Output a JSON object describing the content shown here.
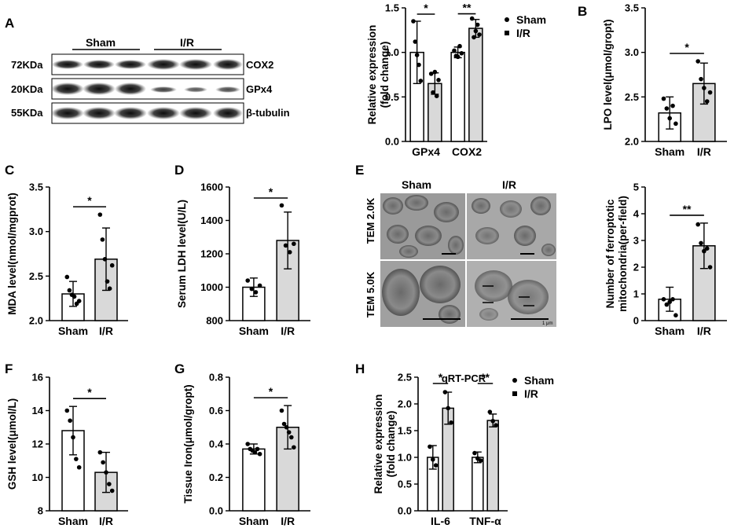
{
  "panel_letters": {
    "A": "A",
    "B": "B",
    "C": "C",
    "D": "D",
    "E": "E",
    "F": "F",
    "G": "G",
    "H": "H"
  },
  "western_blot": {
    "groups": [
      "Sham",
      "I/R"
    ],
    "rows": [
      {
        "kda": "72KDa",
        "protein": "COX2"
      },
      {
        "kda": "20KDa",
        "protein": "GPx4"
      },
      {
        "kda": "55KDa",
        "protein": "β-tubulin"
      }
    ]
  },
  "tem": {
    "col_labels": [
      "Sham",
      "I/R"
    ],
    "row_labels": [
      "TEM 2.0K",
      "TEM 5.0K"
    ],
    "scale_text": "1 μm"
  },
  "colors": {
    "sham": "#ffffff",
    "ir": "#d9d9d9",
    "stroke": "#000000"
  },
  "chart_data": [
    {
      "id": "A-bar",
      "type": "bar",
      "ylabel": "Relative expression\n(fold change)",
      "categories": [
        "GPx4",
        "COX2"
      ],
      "ylim": [
        0,
        1.5
      ],
      "yticks": [
        0,
        0.5,
        1.0,
        1.5
      ],
      "yticklabels": [
        "0.0",
        "0.5",
        "1.0",
        "1.5"
      ],
      "legend": [
        "Sham",
        "I/R"
      ],
      "legend_position": "top-right",
      "series": [
        {
          "name": "Sham",
          "values": [
            1.0,
            1.0
          ],
          "errors": [
            0.35,
            0.06
          ],
          "points": [
            [
              1.35,
              1.12,
              0.97,
              0.86,
              0.68
            ],
            [
              1.02,
              0.96,
              0.95,
              1.07,
              0.99
            ]
          ]
        },
        {
          "name": "I/R",
          "values": [
            0.65,
            1.27
          ],
          "errors": [
            0.12,
            0.1
          ],
          "points": [
            [
              0.76,
              0.55,
              0.78,
              0.51,
              0.69
            ],
            [
              1.38,
              1.17,
              1.24,
              1.31,
              1.2
            ]
          ]
        }
      ],
      "significance": [
        "*",
        "**"
      ]
    },
    {
      "id": "B",
      "type": "bar",
      "ylabel": "LPO level(μmol/gropt)",
      "categories": [
        "Sham",
        "I/R"
      ],
      "values": [
        2.32,
        2.65
      ],
      "errors": [
        0.18,
        0.23
      ],
      "points": [
        [
          2.48,
          2.37,
          2.26,
          2.4,
          2.2
        ],
        [
          2.9,
          2.7,
          2.6,
          2.45,
          2.55
        ]
      ],
      "ylim": [
        2.0,
        3.5
      ],
      "yticks": [
        2.0,
        2.5,
        3.0,
        3.5
      ],
      "yticklabels": [
        "2.0",
        "2.5",
        "3.0",
        "3.5"
      ],
      "significance": "*"
    },
    {
      "id": "C",
      "type": "bar",
      "ylabel": "MDA level(nmol/mgprot)",
      "categories": [
        "Sham",
        "I/R"
      ],
      "values": [
        2.3,
        2.69
      ],
      "errors": [
        0.14,
        0.35
      ],
      "points": [
        [
          2.49,
          2.34,
          2.29,
          2.27,
          2.19,
          2.22
        ],
        [
          3.19,
          2.91,
          2.69,
          2.44,
          2.36,
          2.62
        ]
      ],
      "ylim": [
        2.0,
        3.5
      ],
      "yticks": [
        2.0,
        2.5,
        3.0,
        3.5
      ],
      "yticklabels": [
        "2.0",
        "2.5",
        "3.0",
        "3.5"
      ],
      "significance": "*"
    },
    {
      "id": "D",
      "type": "bar",
      "ylabel": "Serum LDH level(U/L)",
      "categories": [
        "Sham",
        "I/R"
      ],
      "values": [
        1000,
        1280
      ],
      "errors": [
        55,
        170
      ],
      "points": [
        [
          1040,
          990,
          970,
          1010
        ],
        [
          1490,
          1250,
          1210,
          1260
        ]
      ],
      "ylim": [
        800,
        1600
      ],
      "yticks": [
        800,
        1000,
        1200,
        1400,
        1600
      ],
      "yticklabels": [
        "800",
        "1000",
        "1200",
        "1400",
        "1600"
      ],
      "significance": "*"
    },
    {
      "id": "E-bar",
      "type": "bar",
      "ylabel": "Number of ferroptotic\nmitochondria(per-field)",
      "categories": [
        "Sham",
        "I/R"
      ],
      "values": [
        0.8,
        2.8
      ],
      "errors": [
        0.45,
        0.85
      ],
      "points": [
        [
          0.8,
          0.6,
          0.7,
          0.8,
          0.2
        ],
        [
          3.6,
          2.9,
          2.6,
          2.7,
          2.0
        ]
      ],
      "ylim": [
        0,
        5
      ],
      "yticks": [
        0,
        1,
        2,
        3,
        4,
        5
      ],
      "yticklabels": [
        "0",
        "1",
        "2",
        "3",
        "4",
        "5"
      ],
      "significance": "**"
    },
    {
      "id": "F",
      "type": "bar",
      "ylabel": "GSH level(μmol/L)",
      "categories": [
        "Sham",
        "I/R"
      ],
      "values": [
        12.8,
        10.3
      ],
      "errors": [
        1.45,
        1.2
      ],
      "points": [
        [
          14.0,
          13.4,
          12.4,
          11.1,
          10.6
        ],
        [
          11.5,
          10.9,
          10.3,
          9.6,
          9.2
        ]
      ],
      "ylim": [
        8,
        16
      ],
      "yticks": [
        8,
        10,
        12,
        14,
        16
      ],
      "yticklabels": [
        "8",
        "10",
        "12",
        "14",
        "16"
      ],
      "significance": "*"
    },
    {
      "id": "G",
      "type": "bar",
      "ylabel": "Tissue Iron(μmol/gropt)",
      "categories": [
        "Sham",
        "I/R"
      ],
      "values": [
        0.37,
        0.5
      ],
      "errors": [
        0.03,
        0.13
      ],
      "points": [
        [
          0.4,
          0.37,
          0.36,
          0.35,
          0.37,
          0.34
        ],
        [
          0.6,
          0.52,
          0.5,
          0.47,
          0.44,
          0.38
        ]
      ],
      "ylim": [
        0,
        0.8
      ],
      "yticks": [
        0,
        0.2,
        0.4,
        0.6,
        0.8
      ],
      "yticklabels": [
        "0.0",
        "0.2",
        "0.4",
        "0.6",
        "0.8"
      ],
      "significance": "*"
    },
    {
      "id": "H",
      "type": "bar",
      "title": "qRT-PCR",
      "ylabel": "Relative expression\n(fold change)",
      "categories": [
        "IL-6",
        "TNF-α"
      ],
      "ylim": [
        0,
        2.5
      ],
      "yticks": [
        0,
        0.5,
        1.0,
        1.5,
        2.0,
        2.5
      ],
      "yticklabels": [
        "0.0",
        "0.5",
        "1.0",
        "1.5",
        "2.0",
        "2.5"
      ],
      "legend": [
        "Sham",
        "I/R"
      ],
      "legend_position": "top-right",
      "series": [
        {
          "name": "Sham",
          "values": [
            1.0,
            1.0
          ],
          "errors": [
            0.22,
            0.1
          ],
          "points": [
            [
              1.2,
              0.96,
              0.85
            ],
            [
              1.08,
              0.98,
              0.94
            ]
          ]
        },
        {
          "name": "I/R",
          "values": [
            1.92,
            1.69
          ],
          "errors": [
            0.3,
            0.12
          ],
          "points": [
            [
              2.22,
              1.92,
              1.65
            ],
            [
              1.85,
              1.68,
              1.6
            ]
          ]
        }
      ],
      "significance": [
        "*",
        "**"
      ]
    }
  ]
}
